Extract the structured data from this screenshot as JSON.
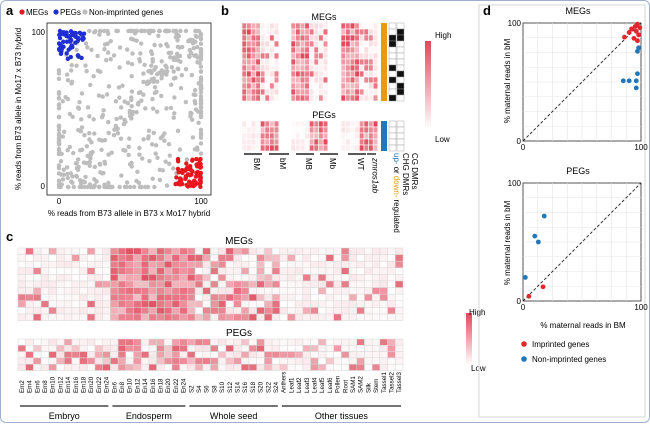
{
  "chart_data": [
    {
      "panel": "a",
      "type": "scatter",
      "legend": [
        "MEGs",
        "PEGs",
        "Non-imprinted genes"
      ],
      "colors": {
        "MEGs": "#e8171d",
        "PEGs": "#1f2fd4",
        "Non-imprinted genes": "#bdbdbd"
      },
      "xlabel": "% reads from B73 allele in B73 x Mo17 hybrid",
      "ylabel": "% reads from B73 allele in Mo17 x B73 hybrid",
      "xticks": [
        "0",
        "100"
      ],
      "yticks": [
        "0",
        "100"
      ],
      "xlim": [
        0,
        100
      ],
      "ylim": [
        0,
        100
      ],
      "series": [
        {
          "name": "MEGs",
          "region": {
            "x": [
              82,
              100
            ],
            "y": [
              0,
              18
            ]
          }
        },
        {
          "name": "PEGs",
          "region": {
            "x": [
              0,
              18
            ],
            "y": [
              82,
              100
            ]
          }
        }
      ]
    },
    {
      "panel": "b",
      "type": "heatmap",
      "groups": [
        "MEGs",
        "PEGs"
      ],
      "columns": [
        "BM",
        "bM",
        "MB",
        "Mb",
        "WT",
        "zmros1ab"
      ],
      "annotation_labels": [
        "CHG DMRs",
        "CG DMRs"
      ],
      "regulation_label": {
        "up": "up-",
        "or": "or",
        "down": "down-",
        "rest": "regulated"
      },
      "scale": {
        "high": "High",
        "low": "Low"
      }
    },
    {
      "panel": "c",
      "type": "heatmap",
      "groups": [
        "MEGs",
        "PEGs"
      ],
      "tissue_groups": [
        "Embryo",
        "Endosperm",
        "Whole seed",
        "Other tissues"
      ],
      "samples": [
        "Em2",
        "Em4",
        "Em6",
        "Em8",
        "Em10",
        "Em12",
        "Em14",
        "Em16",
        "Em18",
        "Em20",
        "Em22",
        "Em24",
        "En6",
        "En8",
        "En10",
        "En12",
        "En14",
        "En16",
        "En18",
        "En20",
        "En22",
        "En24",
        "S2",
        "S4",
        "S6",
        "S8",
        "S10",
        "S12",
        "S14",
        "S16",
        "S18",
        "S20",
        "S22",
        "S24",
        "Anthers",
        "Leaf1",
        "Leaf2",
        "Leaf3",
        "Leaf4",
        "Leaf5",
        "Leaf6",
        "Pollen",
        "Root",
        "SAM1",
        "SAM2",
        "Silk",
        "Stem",
        "Tassel1",
        "Tassel2",
        "Tassel3"
      ],
      "scale": {
        "high": "High",
        "low": "Low"
      }
    },
    {
      "panel": "d",
      "type": "scatter",
      "subplots": [
        {
          "title": "MEGs",
          "xlabel": "",
          "ylabel": "% maternal reads in bM",
          "xticks": [
            "0",
            "100"
          ],
          "yticks": [
            "0",
            "50",
            "100"
          ],
          "xlim": [
            0,
            100
          ],
          "ylim": [
            0,
            100
          ],
          "series": [
            {
              "name": "Imprinted genes",
              "points": [
                [
                  86,
                  88
                ],
                [
                  90,
                  92
                ],
                [
                  92,
                  95
                ],
                [
                  94,
                  87
                ],
                [
                  95,
                  97
                ],
                [
                  96,
                  93
                ],
                [
                  97,
                  99
                ],
                [
                  98,
                  90
                ],
                [
                  97,
                  85
                ],
                [
                  99,
                  96
                ]
              ]
            },
            {
              "name": "Non-imprinted genes",
              "points": [
                [
                  85,
                  51
                ],
                [
                  90,
                  51
                ],
                [
                  96,
                  51
                ],
                [
                  97,
                  57
                ],
                [
                  96,
                  45
                ],
                [
                  97,
                  76
                ],
                [
                  98,
                  79
                ]
              ]
            }
          ]
        },
        {
          "title": "PEGs",
          "xlabel": "% maternal reads in BM",
          "ylabel": "% maternal reads in bM",
          "xticks": [
            "0",
            "100"
          ],
          "yticks": [
            "0",
            "100"
          ],
          "xlim": [
            0,
            100
          ],
          "ylim": [
            0,
            100
          ],
          "series": [
            {
              "name": "Imprinted genes",
              "points": [
                [
                  5,
                  4
                ],
                [
                  17,
                  12
                ]
              ]
            },
            {
              "name": "Non-imprinted genes",
              "points": [
                [
                  2,
                  20
                ],
                [
                  10,
                  55
                ],
                [
                  13,
                  50
                ],
                [
                  18,
                  72
                ]
              ]
            }
          ]
        }
      ],
      "legend": [
        "Imprinted genes",
        "Non-imprinted genes"
      ],
      "colors": {
        "Imprinted genes": "#e3262c",
        "Non-imprinted genes": "#2077b9"
      }
    }
  ],
  "panel_labels": [
    "a",
    "b",
    "c",
    "d"
  ]
}
